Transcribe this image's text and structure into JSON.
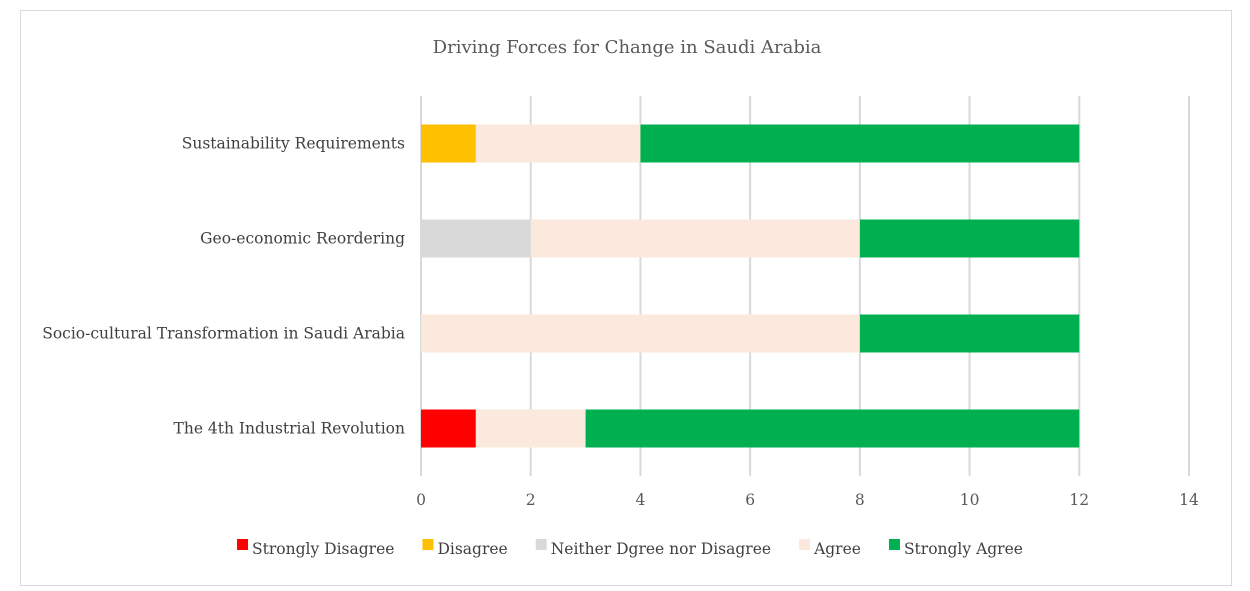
{
  "chart_data": {
    "type": "bar",
    "orientation": "horizontal",
    "stacked": true,
    "title": "Driving Forces for Change in Saudi Arabia",
    "xlabel": "",
    "ylabel": "",
    "xlim": [
      0,
      14
    ],
    "x_ticks": [
      0,
      2,
      4,
      6,
      8,
      10,
      12,
      14
    ],
    "grid": "vertical",
    "legend_position": "bottom",
    "categories": [
      "The 4th Industrial Revolution",
      "Socio-cultural Transformation in Saudi Arabia",
      "Geo-economic Reordering",
      "Sustainability Requirements"
    ],
    "series": [
      {
        "name": "Strongly Disagree",
        "color": "#ff0000",
        "values": [
          1,
          0,
          0,
          0
        ]
      },
      {
        "name": "Disagree",
        "color": "#ffc000",
        "values": [
          0,
          0,
          0,
          1
        ]
      },
      {
        "name": "Neither Dgree nor Disagree",
        "color": "#d9d9d9",
        "values": [
          0,
          0,
          2,
          0
        ]
      },
      {
        "name": "Agree",
        "color": "#fbe9dd",
        "values": [
          2,
          8,
          6,
          3
        ]
      },
      {
        "name": "Strongly Agree",
        "color": "#00b050",
        "values": [
          9,
          4,
          4,
          8
        ]
      }
    ]
  }
}
